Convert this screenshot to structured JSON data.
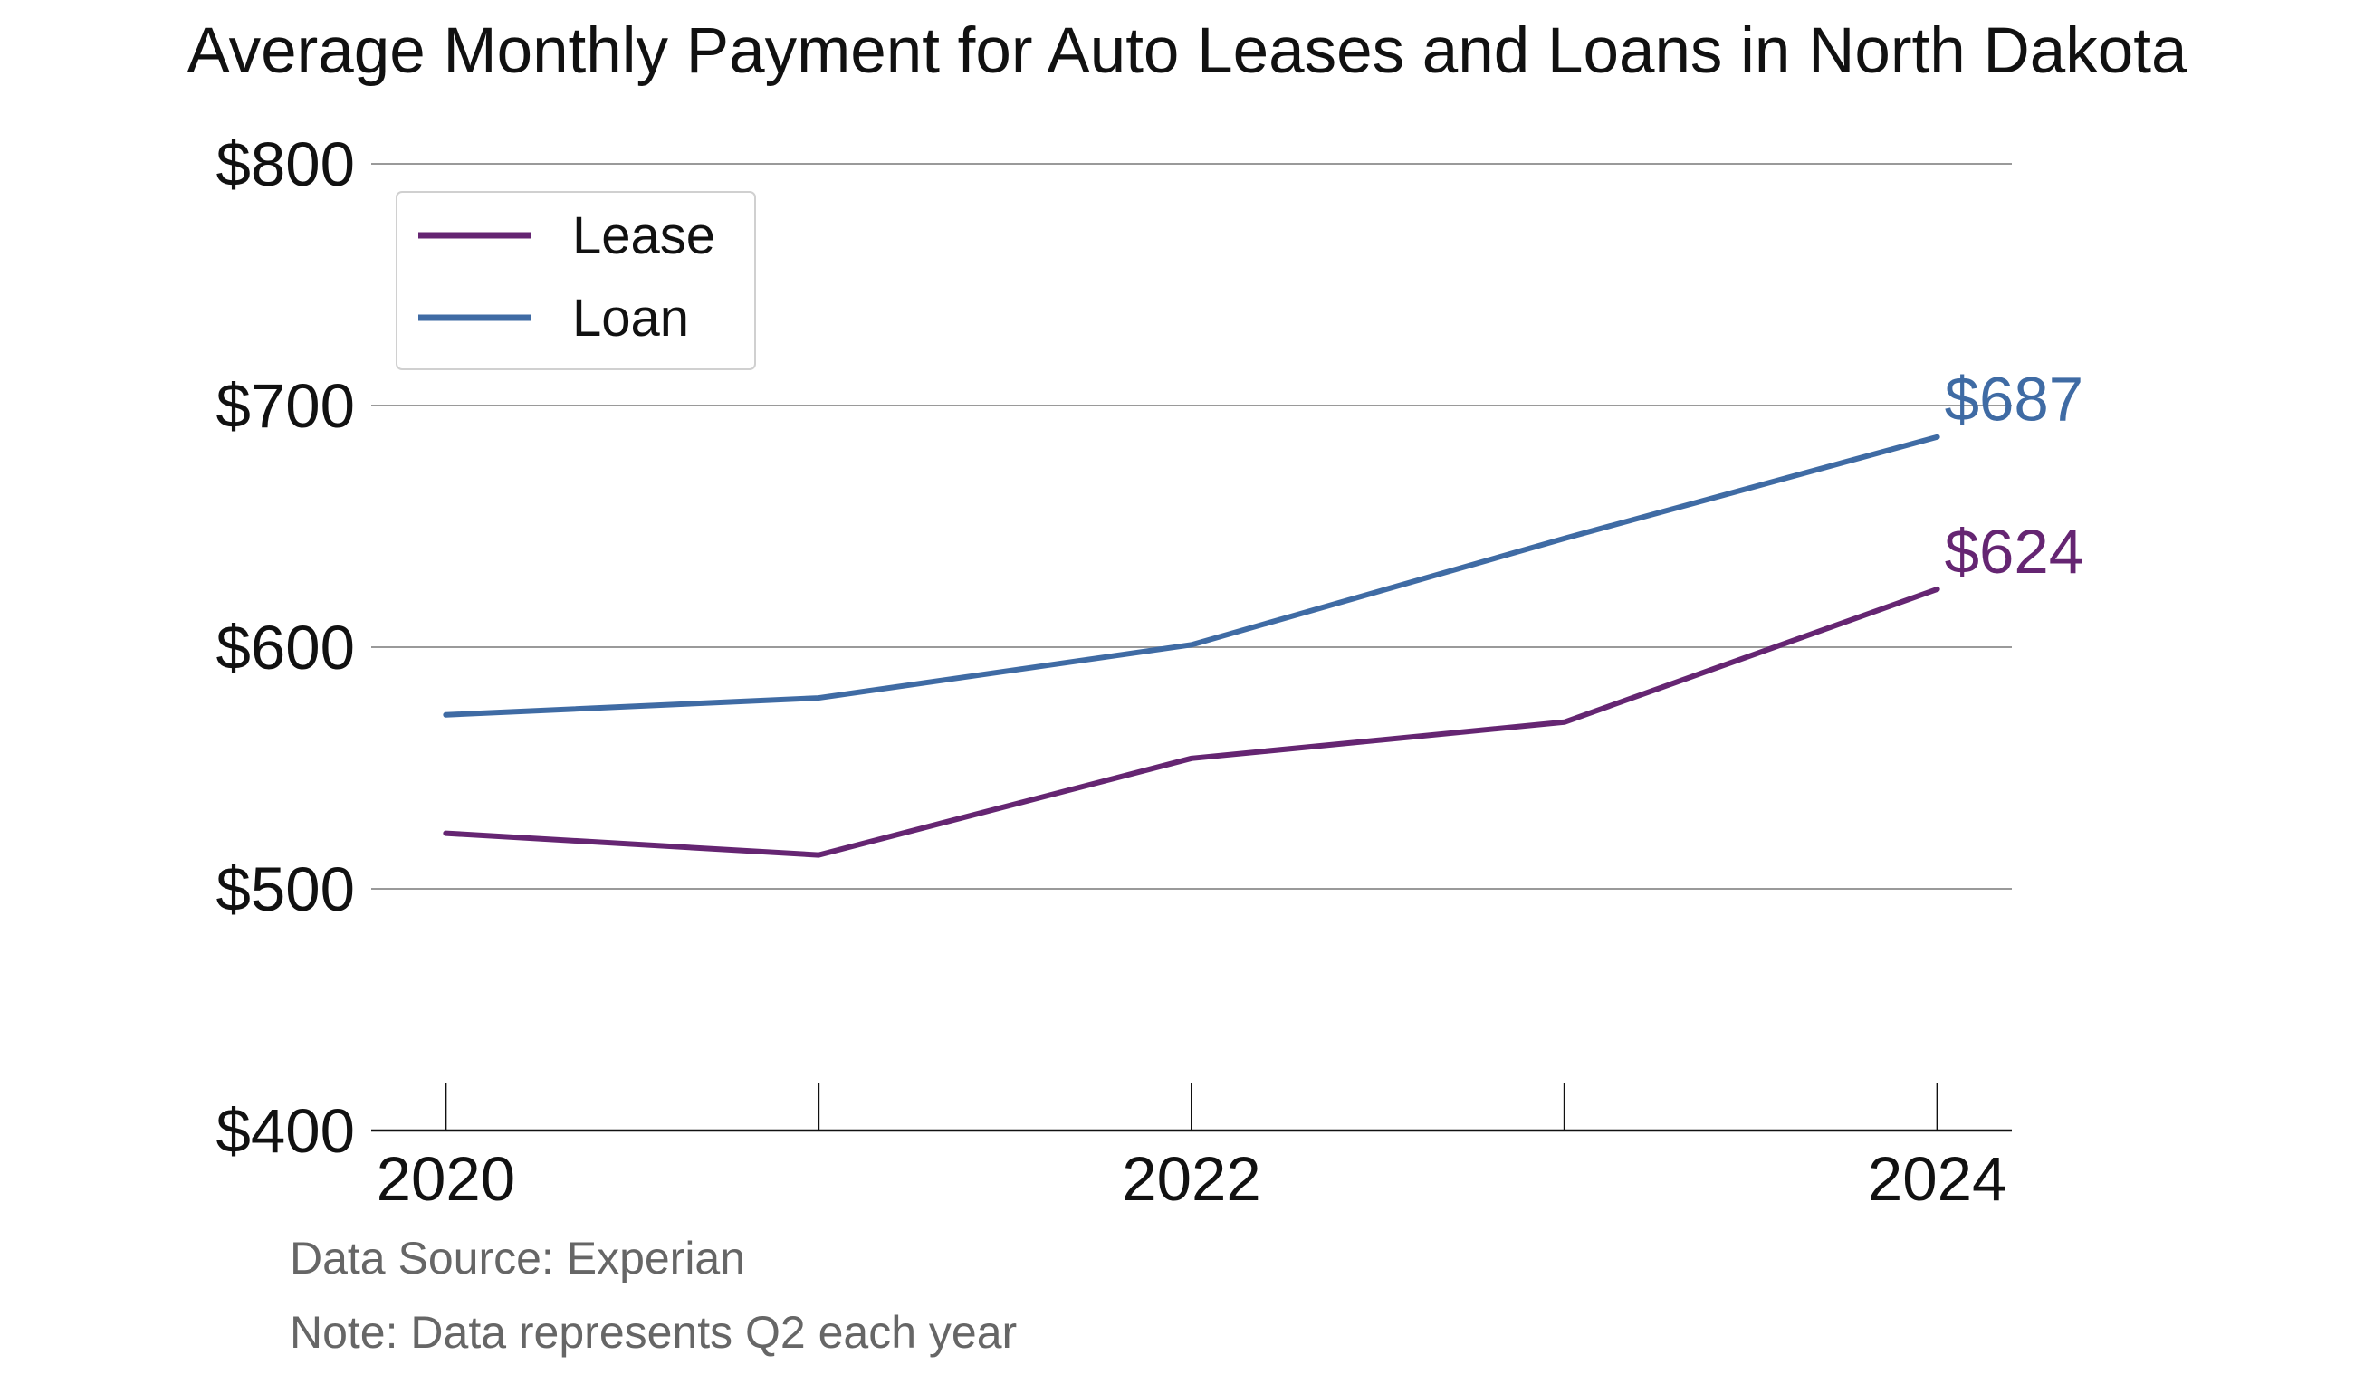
{
  "chart_data": {
    "type": "line",
    "title": "Average Monthly Payment for Auto Leases and Loans in North Dakota",
    "xlabel": "",
    "ylabel": "",
    "x": [
      2020,
      2021,
      2022,
      2023,
      2024
    ],
    "x_tick_values": [
      2020,
      2022,
      2024
    ],
    "x_tick_labels": [
      "2020",
      "2022",
      "2024"
    ],
    "xlim": [
      2019.8,
      2024.2
    ],
    "y_tick_values": [
      400,
      500,
      600,
      700,
      800
    ],
    "y_tick_labels": [
      "$400",
      "$500",
      "$600",
      "$700",
      "$800"
    ],
    "ylim": [
      400,
      800
    ],
    "grid": "horizontal",
    "legend_position": "top-left",
    "series": [
      {
        "name": "Lease",
        "color": "#652572",
        "values": [
          523,
          514,
          554,
          569,
          624
        ],
        "end_label": "$624"
      },
      {
        "name": "Loan",
        "color": "#3f6ba4",
        "values": [
          572,
          579,
          601,
          645,
          687
        ],
        "end_label": "$687"
      }
    ],
    "annotations": [
      "Data Source: Experian",
      "Note: Data represents Q2 each year"
    ]
  }
}
